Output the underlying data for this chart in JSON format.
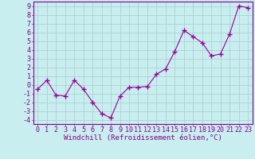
{
  "x": [
    0,
    1,
    2,
    3,
    4,
    5,
    6,
    7,
    8,
    9,
    10,
    11,
    12,
    13,
    14,
    15,
    16,
    17,
    18,
    19,
    20,
    21,
    22,
    23
  ],
  "y": [
    -0.5,
    0.5,
    -1.2,
    -1.3,
    0.5,
    -0.5,
    -2.0,
    -3.3,
    -3.8,
    -1.3,
    -0.3,
    -0.3,
    -0.2,
    1.2,
    1.8,
    3.8,
    6.2,
    5.5,
    4.8,
    3.3,
    3.5,
    5.8,
    9.0,
    8.8
  ],
  "line_color": "#990099",
  "marker": "+",
  "background_color": "#c8eef0",
  "grid_color": "#aacccc",
  "xlabel": "Windchill (Refroidissement éolien,°C)",
  "xlim": [
    -0.5,
    23.5
  ],
  "ylim": [
    -4.5,
    9.5
  ],
  "yticks": [
    -4,
    -3,
    -2,
    -1,
    0,
    1,
    2,
    3,
    4,
    5,
    6,
    7,
    8,
    9
  ],
  "xticks": [
    0,
    1,
    2,
    3,
    4,
    5,
    6,
    7,
    8,
    9,
    10,
    11,
    12,
    13,
    14,
    15,
    16,
    17,
    18,
    19,
    20,
    21,
    22,
    23
  ],
  "tick_label_color": "#880088",
  "axis_color": "#880088",
  "label_fontsize": 6.5,
  "tick_fontsize": 6,
  "linewidth": 0.8,
  "markersize": 4,
  "markeredgewidth": 1.0
}
